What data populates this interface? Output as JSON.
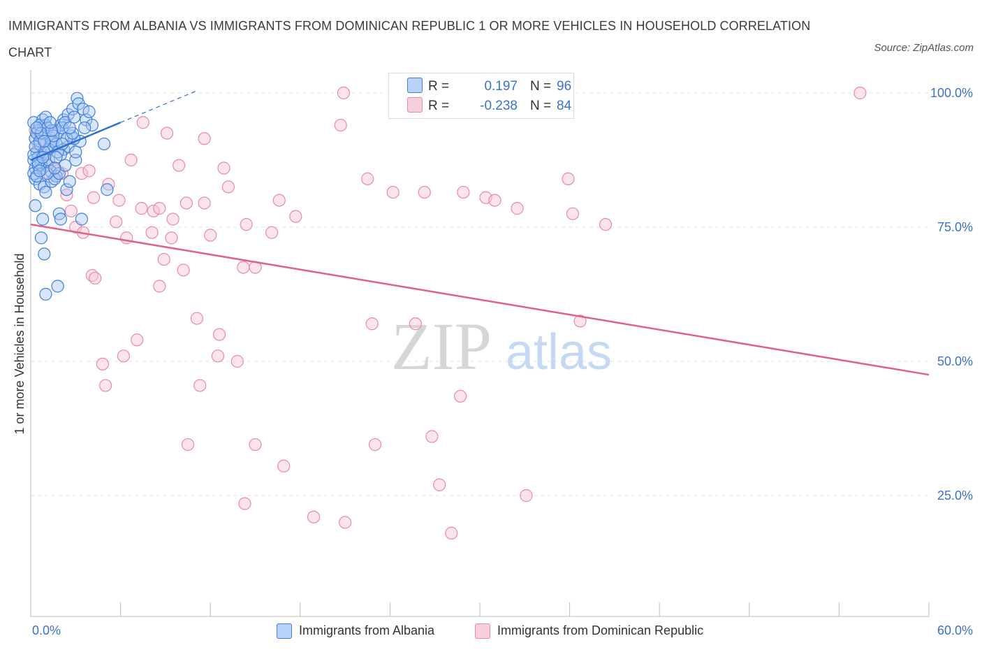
{
  "title": "IMMIGRANTS FROM ALBANIA VS IMMIGRANTS FROM DOMINICAN REPUBLIC 1 OR MORE VEHICLES IN HOUSEHOLD CORRELATION CHART",
  "source": "Source: ZipAtlas.com",
  "watermark": {
    "zip": "ZIP",
    "atlas": "atlas"
  },
  "legend_top": {
    "rows": [
      {
        "r_label": "R =",
        "r_value": "0.197",
        "n_label": "N =",
        "n_value": "96"
      },
      {
        "r_label": "R =",
        "r_value": "-0.238",
        "n_label": "N =",
        "n_value": "84"
      }
    ]
  },
  "legend_bottom": [
    {
      "label": "Immigrants from Albania"
    },
    {
      "label": "Immigrants from Dominican Republic"
    }
  ],
  "colors": {
    "albania_fill": "#a9c8f5",
    "albania_stroke": "#3f7fd8",
    "albania_line": "#2a6fd1",
    "dominican_fill": "#f7c3d3",
    "dominican_stroke": "#e58aa8",
    "dominican_line": "#e0608d",
    "axis_label": "#3a72c8",
    "grid": "#e3e3e3"
  },
  "chart_data": {
    "type": "scatter",
    "title": "IMMIGRANTS FROM ALBANIA VS IMMIGRANTS FROM DOMINICAN REPUBLIC 1 OR MORE VEHICLES IN HOUSEHOLD CORRELATION CHART",
    "xlabel": "",
    "ylabel": "1 or more Vehicles in Household",
    "xlim": [
      0,
      60
    ],
    "ylim": [
      0,
      103
    ],
    "x_tick_labels": [
      {
        "value": 0,
        "label": "0.0%"
      },
      {
        "value": 60,
        "label": "60.0%"
      }
    ],
    "y_tick_labels": [
      {
        "value": 100,
        "label": "100.0%"
      },
      {
        "value": 75,
        "label": "75.0%"
      },
      {
        "value": 50,
        "label": "50.0%"
      },
      {
        "value": 25,
        "label": "25.0%"
      }
    ],
    "series": [
      {
        "name": "Immigrants from Albania",
        "R": 0.197,
        "N": 96,
        "trend": {
          "x1": 0,
          "y1": 87.5,
          "x2": 6.0,
          "y2": 94.5,
          "dash_to_x": 11.0,
          "dash_to_y": 100.3
        },
        "points": [
          [
            0.2,
            94.5
          ],
          [
            0.5,
            93.0
          ],
          [
            0.3,
            91.5
          ],
          [
            0.8,
            95.0
          ],
          [
            1.0,
            94.0
          ],
          [
            0.4,
            89.0
          ],
          [
            0.6,
            90.5
          ],
          [
            1.2,
            92.0
          ],
          [
            0.2,
            87.5
          ],
          [
            0.3,
            86.0
          ],
          [
            0.5,
            88.0
          ],
          [
            0.7,
            87.0
          ],
          [
            1.0,
            88.5
          ],
          [
            1.3,
            90.0
          ],
          [
            1.5,
            91.0
          ],
          [
            1.8,
            92.5
          ],
          [
            2.0,
            94.0
          ],
          [
            2.2,
            95.0
          ],
          [
            2.5,
            96.0
          ],
          [
            2.8,
            97.0
          ],
          [
            3.1,
            99.0
          ],
          [
            3.2,
            98.0
          ],
          [
            3.5,
            97.0
          ],
          [
            3.7,
            95.0
          ],
          [
            4.1,
            94.0
          ],
          [
            4.9,
            90.5
          ],
          [
            0.2,
            85.0
          ],
          [
            0.3,
            84.0
          ],
          [
            0.6,
            83.0
          ],
          [
            0.9,
            82.5
          ],
          [
            1.4,
            83.5
          ],
          [
            1.7,
            84.5
          ],
          [
            2.4,
            82.0
          ],
          [
            3.0,
            87.5
          ],
          [
            5.1,
            82.0
          ],
          [
            0.3,
            79.0
          ],
          [
            1.0,
            81.5
          ],
          [
            1.9,
            77.5
          ],
          [
            0.8,
            76.5
          ],
          [
            0.7,
            73.0
          ],
          [
            2.0,
            76.5
          ],
          [
            3.4,
            76.5
          ],
          [
            0.9,
            70.0
          ],
          [
            1.8,
            64.0
          ],
          [
            1.0,
            62.5
          ],
          [
            0.4,
            92.5
          ],
          [
            0.6,
            94.0
          ],
          [
            1.1,
            93.5
          ],
          [
            1.6,
            93.0
          ],
          [
            2.1,
            93.5
          ],
          [
            2.3,
            94.5
          ],
          [
            2.7,
            92.0
          ],
          [
            1.4,
            91.0
          ],
          [
            1.2,
            89.5
          ],
          [
            0.9,
            89.0
          ],
          [
            1.7,
            90.5
          ],
          [
            2.2,
            89.5
          ],
          [
            2.5,
            90.0
          ],
          [
            3.3,
            91.0
          ],
          [
            2.9,
            91.5
          ],
          [
            0.5,
            86.5
          ],
          [
            0.8,
            86.0
          ],
          [
            1.1,
            86.5
          ],
          [
            1.3,
            85.5
          ],
          [
            1.6,
            84.0
          ],
          [
            1.9,
            85.0
          ],
          [
            2.6,
            83.5
          ],
          [
            0.4,
            84.5
          ],
          [
            0.2,
            88.5
          ],
          [
            0.6,
            91.0
          ],
          [
            1.5,
            92.0
          ],
          [
            2.0,
            88.5
          ],
          [
            2.4,
            91.5
          ],
          [
            3.0,
            89.0
          ],
          [
            3.6,
            93.5
          ],
          [
            1.0,
            95.5
          ],
          [
            0.7,
            92.5
          ],
          [
            1.2,
            87.5
          ],
          [
            2.8,
            92.5
          ],
          [
            3.9,
            96.5
          ],
          [
            0.3,
            90.0
          ],
          [
            0.5,
            87.0
          ],
          [
            1.8,
            89.0
          ],
          [
            2.1,
            90.5
          ],
          [
            1.4,
            93.0
          ],
          [
            0.9,
            91.0
          ],
          [
            2.6,
            93.5
          ],
          [
            1.1,
            85.0
          ],
          [
            0.6,
            85.5
          ],
          [
            1.7,
            88.0
          ],
          [
            2.3,
            86.5
          ],
          [
            0.4,
            93.5
          ],
          [
            0.8,
            88.0
          ],
          [
            1.3,
            94.5
          ],
          [
            2.9,
            95.5
          ],
          [
            1.6,
            86.0
          ]
        ]
      },
      {
        "name": "Immigrants from Dominican Republic",
        "R": -0.238,
        "N": 84,
        "trend": {
          "x1": 0,
          "y1": 75.5,
          "x2": 60,
          "y2": 47.5
        },
        "points": [
          [
            0.3,
            93.0
          ],
          [
            0.5,
            90.5
          ],
          [
            0.8,
            88.5
          ],
          [
            1.0,
            87.0
          ],
          [
            1.3,
            84.5
          ],
          [
            1.6,
            86.0
          ],
          [
            2.1,
            85.0
          ],
          [
            2.4,
            81.0
          ],
          [
            2.7,
            78.0
          ],
          [
            3.0,
            75.0
          ],
          [
            3.5,
            74.0
          ],
          [
            3.4,
            85.0
          ],
          [
            3.9,
            85.5
          ],
          [
            5.2,
            83.0
          ],
          [
            5.9,
            80.0
          ],
          [
            5.7,
            76.0
          ],
          [
            6.4,
            73.0
          ],
          [
            6.7,
            87.5
          ],
          [
            7.5,
            94.5
          ],
          [
            7.4,
            78.5
          ],
          [
            8.1,
            74.0
          ],
          [
            8.2,
            78.0
          ],
          [
            8.6,
            78.5
          ],
          [
            9.1,
            92.5
          ],
          [
            9.4,
            73.0
          ],
          [
            9.5,
            76.5
          ],
          [
            9.9,
            86.5
          ],
          [
            10.4,
            79.5
          ],
          [
            11.6,
            91.5
          ],
          [
            11.6,
            79.5
          ],
          [
            12.0,
            73.5
          ],
          [
            12.9,
            86.0
          ],
          [
            13.2,
            82.5
          ],
          [
            14.4,
            75.5
          ],
          [
            14.2,
            67.5
          ],
          [
            15.0,
            67.5
          ],
          [
            16.1,
            74.0
          ],
          [
            16.6,
            80.0
          ],
          [
            17.7,
            77.0
          ],
          [
            20.7,
            94.0
          ],
          [
            20.9,
            100.0
          ],
          [
            22.5,
            84.0
          ],
          [
            22.8,
            57.0
          ],
          [
            24.2,
            81.5
          ],
          [
            26.3,
            81.5
          ],
          [
            25.7,
            57.0
          ],
          [
            26.8,
            36.0
          ],
          [
            27.3,
            27.0
          ],
          [
            28.9,
            81.5
          ],
          [
            28.7,
            43.5
          ],
          [
            30.4,
            80.5
          ],
          [
            31.0,
            80.0
          ],
          [
            32.5,
            78.5
          ],
          [
            35.9,
            84.0
          ],
          [
            36.2,
            77.5
          ],
          [
            36.7,
            57.5
          ],
          [
            38.4,
            75.5
          ],
          [
            55.4,
            100.0
          ],
          [
            4.1,
            66.0
          ],
          [
            4.3,
            65.5
          ],
          [
            4.8,
            49.5
          ],
          [
            5.0,
            45.5
          ],
          [
            6.2,
            51.0
          ],
          [
            7.1,
            54.0
          ],
          [
            8.6,
            64.0
          ],
          [
            8.9,
            69.0
          ],
          [
            10.2,
            67.0
          ],
          [
            11.1,
            58.0
          ],
          [
            11.3,
            45.5
          ],
          [
            12.5,
            51.0
          ],
          [
            12.6,
            55.0
          ],
          [
            13.8,
            50.0
          ],
          [
            10.5,
            34.5
          ],
          [
            15.0,
            34.5
          ],
          [
            16.9,
            30.5
          ],
          [
            14.3,
            23.5
          ],
          [
            18.9,
            21.0
          ],
          [
            21.0,
            20.0
          ],
          [
            28.1,
            18.0
          ],
          [
            33.1,
            25.0
          ],
          [
            23.0,
            34.5
          ],
          [
            1.8,
            85.5
          ],
          [
            4.2,
            80.5
          ],
          [
            0.6,
            88.0
          ]
        ]
      }
    ]
  }
}
